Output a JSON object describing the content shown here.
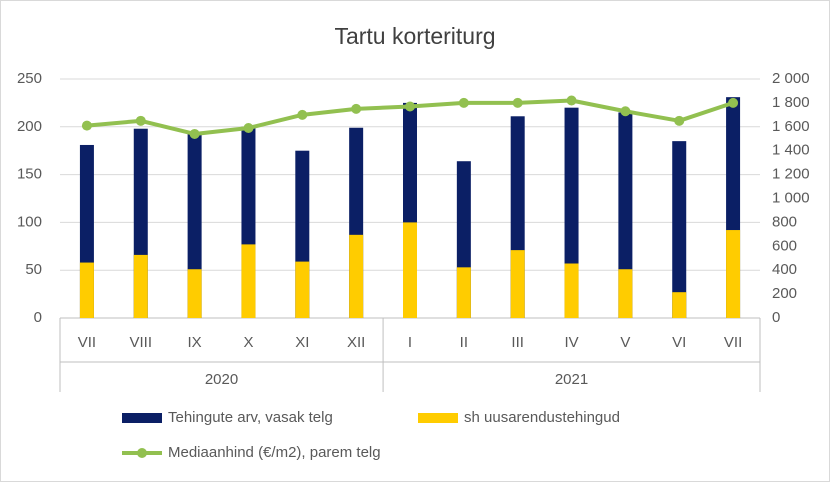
{
  "chart_data": {
    "type": "bar",
    "title": "Tartu korteriturg",
    "categories": [
      "VII",
      "VIII",
      "IX",
      "X",
      "XI",
      "XII",
      "I",
      "II",
      "III",
      "IV",
      "V",
      "VI",
      "VII"
    ],
    "category_groups": [
      "2020",
      "2020",
      "2020",
      "2020",
      "2020",
      "2020",
      "2021",
      "2021",
      "2021",
      "2021",
      "2021",
      "2021",
      "2021"
    ],
    "series": [
      {
        "name": "Tehingute arv, vasak telg",
        "type": "bar",
        "color": "#0b1f65",
        "values": [
          181,
          198,
          193,
          200,
          175,
          199,
          225,
          164,
          211,
          220,
          215,
          185,
          231
        ]
      },
      {
        "name": "sh uusarendustehingud",
        "type": "bar",
        "color": "#ffcc00",
        "values": [
          58,
          66,
          51,
          77,
          59,
          87,
          100,
          53,
          71,
          57,
          51,
          27,
          92
        ]
      },
      {
        "name": "Mediaanhind (€/m2), parem telg",
        "type": "line",
        "axis": "y2",
        "color": "#92c050",
        "values": [
          1610,
          1650,
          1540,
          1590,
          1700,
          1750,
          1770,
          1800,
          1800,
          1820,
          1730,
          1650,
          1800
        ]
      }
    ],
    "ylim": [
      0,
      250
    ],
    "yticks": [
      0,
      50,
      100,
      150,
      200,
      250
    ],
    "y2lim": [
      0,
      2000
    ],
    "y2ticks": [
      0,
      200,
      400,
      600,
      800,
      {
        "value": 1000,
        "label": "1 000"
      },
      {
        "value": 1200,
        "label": "1 200"
      },
      {
        "value": 1400,
        "label": "1 400"
      },
      {
        "value": 1600,
        "label": "1 600"
      },
      {
        "value": 1800,
        "label": "1 800"
      },
      {
        "value": 2000,
        "label": "2 000"
      }
    ],
    "grid": true,
    "legend": "bottom"
  }
}
